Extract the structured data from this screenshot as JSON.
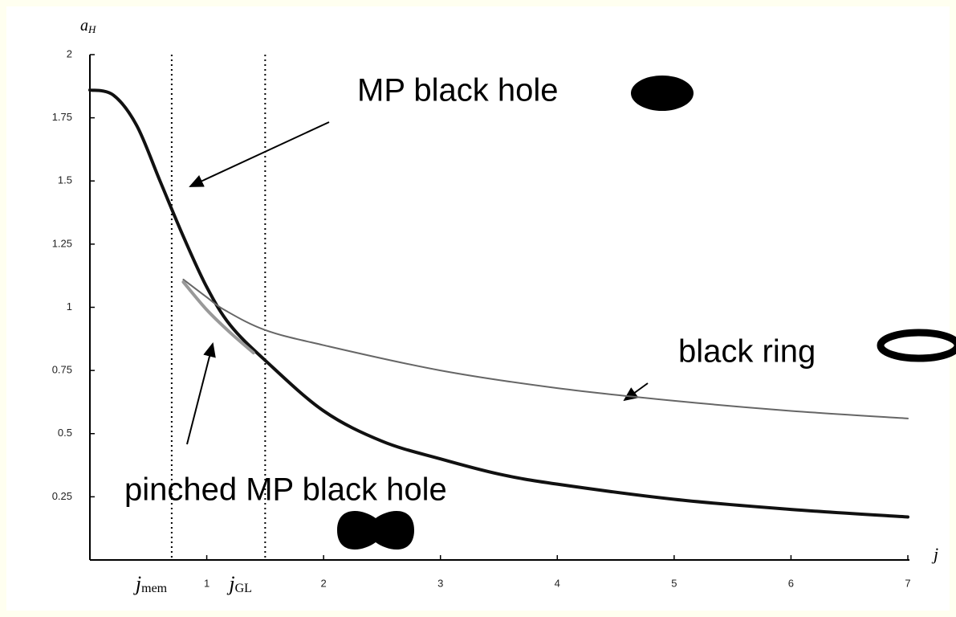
{
  "chart_data": {
    "type": "line",
    "y_label": "a",
    "y_label_sub": "H",
    "x_label": "j",
    "xlim": [
      0,
      7
    ],
    "xticks": [
      1,
      2,
      3,
      4,
      5,
      6,
      7
    ],
    "ylim": [
      0,
      2
    ],
    "yticks": [
      0.25,
      0.5,
      0.75,
      1,
      1.25,
      1.5,
      1.75,
      2
    ],
    "markers": [
      {
        "label": "j",
        "sub": "mem",
        "value": 0.7
      },
      {
        "label": "j",
        "sub": "GL",
        "value": 1.5
      }
    ],
    "annotations": [
      "MP black hole",
      "black ring",
      "pinched MP black hole"
    ],
    "series": [
      {
        "color": "#111111",
        "width": 4,
        "x": [
          0,
          0.2,
          0.4,
          0.6,
          0.8,
          1.0,
          1.2,
          1.5,
          2,
          2.5,
          3,
          3.5,
          4,
          5,
          6,
          7
        ],
        "values": [
          1.86,
          1.84,
          1.72,
          1.5,
          1.28,
          1.08,
          0.93,
          0.79,
          0.59,
          0.47,
          0.4,
          0.34,
          0.3,
          0.24,
          0.2,
          0.17
        ]
      },
      {
        "color": "#666666",
        "width": 2,
        "x": [
          0.8,
          1.0,
          1.15,
          1.5,
          2,
          3,
          4,
          5,
          6,
          7
        ],
        "values": [
          1.11,
          1.04,
          0.99,
          0.91,
          0.85,
          0.75,
          0.68,
          0.63,
          0.59,
          0.56
        ]
      },
      {
        "color": "#999999",
        "width": 4,
        "x": [
          0.8,
          1.0,
          1.2,
          1.4
        ],
        "values": [
          1.1,
          0.99,
          0.9,
          0.82
        ]
      }
    ]
  }
}
